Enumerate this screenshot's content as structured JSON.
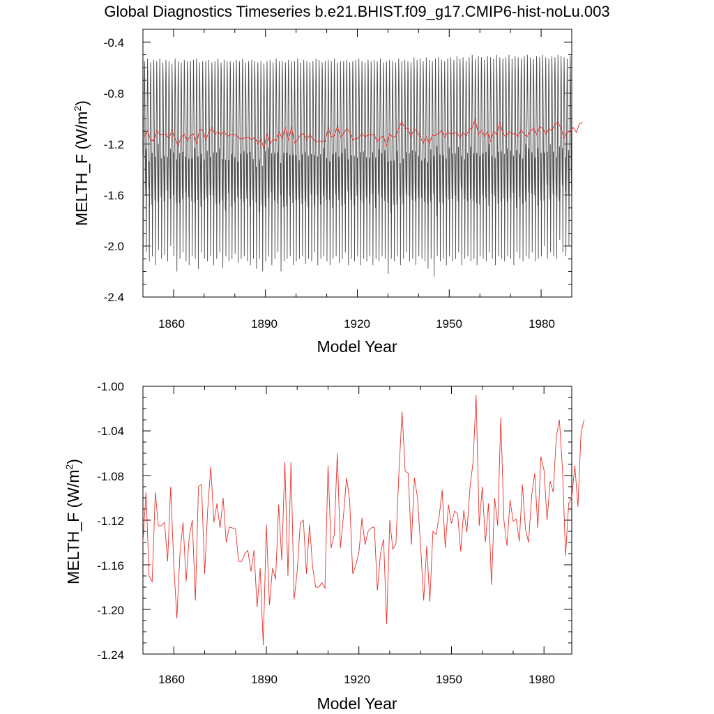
{
  "title": "Global Diagnostics Timeseries b.e21.BHIST.f09_g17.CMIP6-hist-noLu.003",
  "colors": {
    "monthly": "#4a4a4a",
    "annual": "#e8302a",
    "axes": "#000000"
  },
  "chart_data": [
    {
      "type": "line",
      "xlabel": "Model Year",
      "ylabel_main": "MELTH_F (W/m",
      "ylabel_sup": "2",
      "ylabel_close": ")",
      "xlim": [
        1850,
        1990
      ],
      "ylim": [
        -2.4,
        -0.3
      ],
      "xticks": [
        1860,
        1890,
        1920,
        1950,
        1980
      ],
      "xtick_labels": [
        "1860",
        "1890",
        "1920",
        "1950",
        "1980"
      ],
      "yticks": [
        -2.4,
        -2.0,
        -1.6,
        -1.2,
        -0.8,
        -0.4
      ],
      "ytick_labels": [
        "-2.4",
        "-2.0",
        "-1.6",
        "-1.2",
        "-0.8",
        "-0.4"
      ],
      "monthly_series": {
        "x_start": 1850,
        "x_end": 1989,
        "pattern_comment": "",
        "seasonal_cycle_mean_month": [
          -1.9,
          -2.05,
          -1.75,
          -1.45,
          -1.1,
          -0.75,
          -0.55,
          -0.6,
          -0.9,
          -1.2,
          -1.45,
          -1.6
        ],
        "yearly_max": [
          -0.55,
          -0.53,
          -0.56,
          -0.54,
          -0.55,
          -0.53,
          -0.56,
          -0.54,
          -0.55,
          -0.57,
          -0.53,
          -0.55,
          -0.56,
          -0.54,
          -0.55,
          -0.55,
          -0.54,
          -0.53,
          -0.56,
          -0.55,
          -0.55,
          -0.54,
          -0.56,
          -0.55,
          -0.53,
          -0.56,
          -0.54,
          -0.55,
          -0.55,
          -0.56,
          -0.54,
          -0.55,
          -0.53,
          -0.56,
          -0.55,
          -0.54,
          -0.55,
          -0.56,
          -0.55,
          -0.57,
          -0.55,
          -0.54,
          -0.56,
          -0.53,
          -0.55,
          -0.55,
          -0.56,
          -0.54,
          -0.55,
          -0.55,
          -0.53,
          -0.56,
          -0.54,
          -0.55,
          -0.56,
          -0.55,
          -0.53,
          -0.54,
          -0.56,
          -0.55,
          -0.54,
          -0.55,
          -0.53,
          -0.56,
          -0.55,
          -0.55,
          -0.54,
          -0.56,
          -0.55,
          -0.54,
          -0.53,
          -0.55,
          -0.56,
          -0.54,
          -0.55,
          -0.54,
          -0.55,
          -0.53,
          -0.56,
          -0.55,
          -0.54,
          -0.55,
          -0.56,
          -0.53,
          -0.55,
          -0.54,
          -0.55,
          -0.56,
          -0.52,
          -0.54,
          -0.53,
          -0.55,
          -0.52,
          -0.54,
          -0.55,
          -0.53,
          -0.52,
          -0.54,
          -0.55,
          -0.53,
          -0.52,
          -0.54,
          -0.51,
          -0.53,
          -0.52,
          -0.55,
          -0.52,
          -0.5,
          -0.53,
          -0.51,
          -0.52,
          -0.54,
          -0.51,
          -0.52,
          -0.53,
          -0.5,
          -0.52,
          -0.53,
          -0.52,
          -0.5,
          -0.53,
          -0.51,
          -0.52,
          -0.53,
          -0.51,
          -0.5,
          -0.52,
          -0.53,
          -0.51,
          -0.52,
          -0.5,
          -0.52,
          -0.53,
          -0.51,
          -0.52,
          -0.5,
          -0.51,
          -0.52,
          -0.53,
          -0.51
        ],
        "yearly_min": [
          -2.1,
          -2.05,
          -2.12,
          -2.08,
          -2.15,
          -2.03,
          -2.1,
          -2.07,
          -2.12,
          -2.0,
          -2.08,
          -2.2,
          -2.1,
          -2.05,
          -2.12,
          -2.15,
          -2.08,
          -2.1,
          -2.18,
          -2.05,
          -2.1,
          -2.12,
          -2.08,
          -2.15,
          -2.1,
          -2.05,
          -2.17,
          -2.08,
          -2.12,
          -2.1,
          -2.06,
          -2.13,
          -2.1,
          -2.08,
          -2.12,
          -2.15,
          -2.1,
          -2.18,
          -2.1,
          -2.2,
          -2.12,
          -2.08,
          -2.15,
          -2.1,
          -2.05,
          -2.2,
          -2.12,
          -2.1,
          -2.08,
          -2.15,
          -2.12,
          -2.1,
          -2.08,
          -2.14,
          -2.1,
          -2.12,
          -2.05,
          -2.15,
          -2.1,
          -2.08,
          -2.12,
          -2.15,
          -2.1,
          -2.08,
          -2.13,
          -2.1,
          -2.05,
          -2.15,
          -2.1,
          -2.12,
          -2.08,
          -2.15,
          -2.1,
          -2.12,
          -2.08,
          -2.15,
          -2.1,
          -2.12,
          -2.08,
          -2.1,
          -2.22,
          -2.1,
          -2.12,
          -2.08,
          -2.15,
          -2.1,
          -2.05,
          -2.12,
          -2.1,
          -2.15,
          -2.08,
          -2.1,
          -2.12,
          -2.18,
          -2.1,
          -2.24,
          -2.08,
          -2.12,
          -2.1,
          -2.15,
          -2.08,
          -2.12,
          -2.1,
          -2.05,
          -2.15,
          -2.1,
          -2.08,
          -2.12,
          -2.1,
          -2.15,
          -2.08,
          -2.1,
          -2.12,
          -2.05,
          -2.1,
          -2.15,
          -2.08,
          -2.1,
          -2.12,
          -2.08,
          -2.1,
          -2.15,
          -2.05,
          -2.1,
          -2.12,
          -2.08,
          -2.1,
          -2.05,
          -2.12,
          -2.1,
          -2.08,
          -2.0,
          -2.1,
          -2.05,
          -2.08,
          -2.1,
          -1.95,
          -2.05,
          -2.08,
          -2.0
        ]
      }
    },
    {
      "type": "line",
      "xlabel": "Model Year",
      "ylabel_main": "MELTH_F (W/m",
      "ylabel_sup": "2",
      "ylabel_close": ")",
      "xlim": [
        1850,
        1989
      ],
      "ylim": [
        -1.24,
        -1.0
      ],
      "xticks": [
        1860,
        1890,
        1920,
        1950,
        1980
      ],
      "xtick_labels": [
        "1860",
        "1890",
        "1920",
        "1950",
        "1980"
      ],
      "yticks": [
        -1.24,
        -1.2,
        -1.16,
        -1.12,
        -1.08,
        -1.04,
        -1.0
      ],
      "ytick_labels": [
        "-1.24",
        "-1.20",
        "-1.16",
        "-1.12",
        "-1.08",
        "-1.04",
        "-1.00"
      ],
      "annual_series": {
        "x_start": 1850,
        "values": [
          -1.14,
          -1.095,
          -1.17,
          -1.175,
          -1.095,
          -1.125,
          -1.125,
          -1.122,
          -1.157,
          -1.09,
          -1.16,
          -1.208,
          -1.15,
          -1.122,
          -1.175,
          -1.135,
          -1.12,
          -1.192,
          -1.09,
          -1.088,
          -1.168,
          -1.11,
          -1.072,
          -1.122,
          -1.105,
          -1.127,
          -1.1,
          -1.14,
          -1.126,
          -1.127,
          -1.128,
          -1.157,
          -1.157,
          -1.15,
          -1.147,
          -1.166,
          -1.147,
          -1.198,
          -1.163,
          -1.232,
          -1.124,
          -1.196,
          -1.163,
          -1.173,
          -1.106,
          -1.156,
          -1.068,
          -1.17,
          -1.068,
          -1.191,
          -1.166,
          -1.123,
          -1.12,
          -1.168,
          -1.124,
          -1.162,
          -1.18,
          -1.18,
          -1.176,
          -1.181,
          -1.071,
          -1.145,
          -1.133,
          -1.06,
          -1.145,
          -1.116,
          -1.082,
          -1.102,
          -1.168,
          -1.16,
          -1.149,
          -1.118,
          -1.142,
          -1.13,
          -1.127,
          -1.126,
          -1.183,
          -1.15,
          -1.137,
          -1.213,
          -1.12,
          -1.146,
          -1.141,
          -1.076,
          -1.023,
          -1.076,
          -1.078,
          -1.142,
          -1.082,
          -1.1,
          -1.143,
          -1.192,
          -1.143,
          -1.193,
          -1.13,
          -1.133,
          -1.117,
          -1.093,
          -1.145,
          -1.106,
          -1.123,
          -1.112,
          -1.114,
          -1.148,
          -1.111,
          -1.131,
          -1.091,
          -1.068,
          -1.008,
          -1.125,
          -1.09,
          -1.14,
          -1.105,
          -1.178,
          -1.1,
          -1.125,
          -1.028,
          -1.12,
          -1.143,
          -1.102,
          -1.121,
          -1.119,
          -1.139,
          -1.088,
          -1.128,
          -1.14,
          -1.098,
          -1.078,
          -1.127,
          -1.063,
          -1.075,
          -1.12,
          -1.085,
          -1.095,
          -1.045,
          -1.03,
          -1.075,
          -1.152,
          -1.105,
          -1.1,
          -1.071,
          -1.108,
          -1.042,
          -1.03
        ]
      }
    }
  ]
}
